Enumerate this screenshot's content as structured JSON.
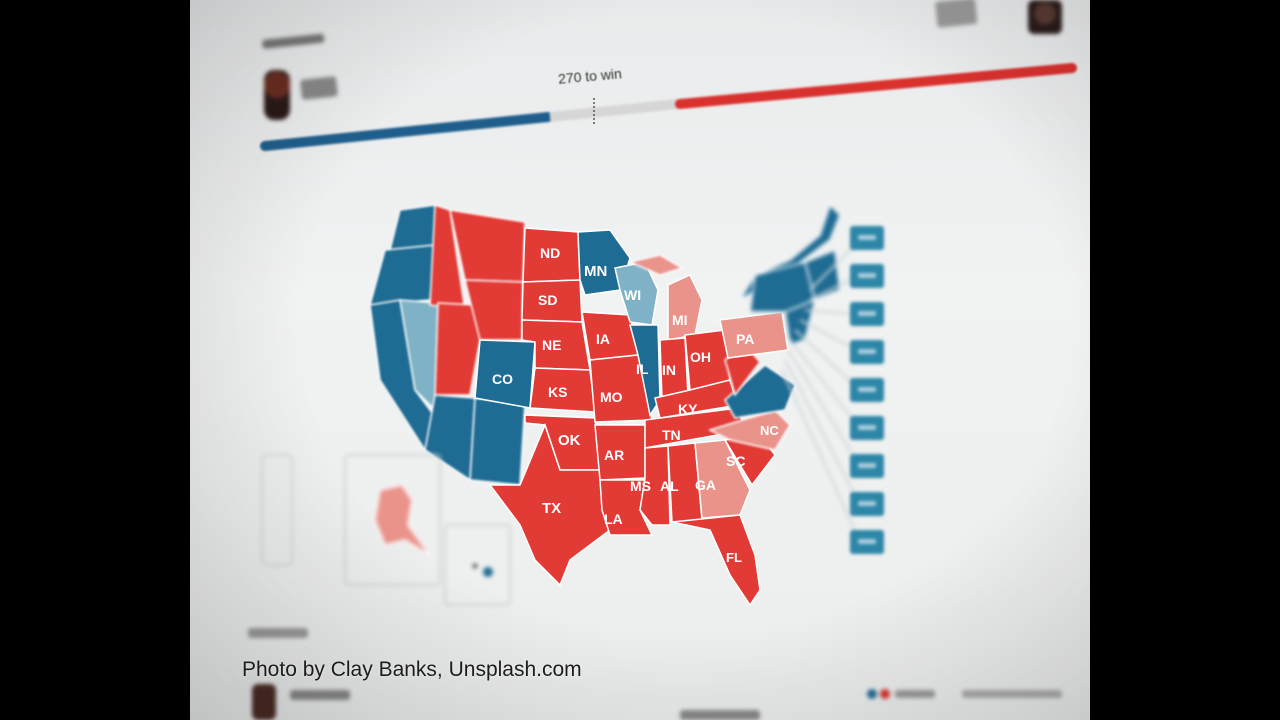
{
  "progress": {
    "win_label": "270 to win",
    "democrat_color": "#1f5e8c",
    "republican_color": "#d9312e"
  },
  "map": {
    "states": [
      "WA",
      "OR",
      "CA",
      "NV",
      "ID",
      "MT",
      "WY",
      "UT",
      "CO",
      "AZ",
      "NM",
      "ND",
      "SD",
      "NE",
      "KS",
      "OK",
      "TX",
      "MN",
      "IA",
      "MO",
      "AR",
      "LA",
      "WI",
      "IL",
      "MI",
      "IN",
      "OH",
      "KY",
      "TN",
      "MS",
      "AL",
      "GA",
      "SC",
      "NC",
      "VA",
      "PA",
      "FL",
      "AK",
      "HI"
    ],
    "colors": {
      "democrat": "#1e6b93",
      "lean_democrat": "#7fb2c6",
      "republican": "#e23a35",
      "lean_republican": "#e9938b"
    },
    "labels": {
      "mn": "MN",
      "wi": "WI",
      "mi": "MI",
      "nd": "ND",
      "sd": "SD",
      "ne": "NE",
      "ks": "KS",
      "ok": "OK",
      "tx": "TX",
      "ia": "IA",
      "mo": "MO",
      "ar": "AR",
      "la": "LA",
      "il": "IL",
      "in": "IN",
      "oh": "OH",
      "ky": "KY",
      "tn": "TN",
      "ms": "MS",
      "al": "AL",
      "ga": "GA",
      "sc": "SC",
      "nc": "NC",
      "pa": "PA",
      "co": "CO",
      "fl": "FL"
    }
  },
  "credit": "Photo by Clay Banks, Unsplash.com"
}
